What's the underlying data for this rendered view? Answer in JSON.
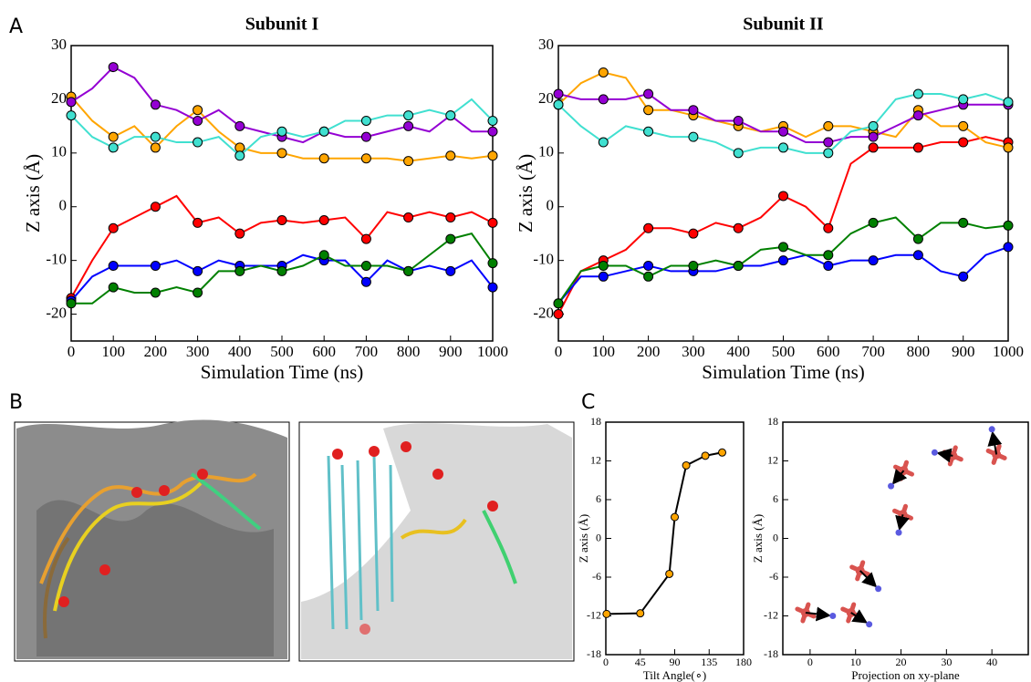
{
  "panels": [
    "A",
    "B",
    "C"
  ],
  "chart_data": [
    {
      "type": "line",
      "title": "Subunit I",
      "xlabel": "Simulation Time (ns)",
      "ylabel": "Z axis (Å)",
      "markers": true,
      "x": [
        0,
        50,
        100,
        150,
        200,
        250,
        300,
        350,
        400,
        450,
        500,
        550,
        600,
        650,
        700,
        750,
        800,
        850,
        900,
        950,
        1000
      ],
      "xlim": [
        0,
        1000
      ],
      "xticks": [
        0,
        100,
        200,
        300,
        400,
        500,
        600,
        700,
        800,
        900,
        1000
      ],
      "ylim": [
        -25,
        30
      ],
      "yticks": [
        -20,
        -10,
        0,
        10,
        20,
        30
      ],
      "series": [
        {
          "color": "#ff0000",
          "values": [
            -17,
            -10,
            -4,
            -2,
            0,
            2,
            -3,
            -2,
            -5,
            -3,
            -2.5,
            -3,
            -2.5,
            -2,
            -6,
            -1,
            -2,
            -1,
            -2,
            -1,
            -3
          ]
        },
        {
          "color": "#0000ff",
          "values": [
            -17.5,
            -13,
            -11,
            -11,
            -11,
            -10,
            -12,
            -10,
            -11,
            -11,
            -11,
            -9,
            -10,
            -10,
            -14,
            -10,
            -12,
            -11,
            -12,
            -10,
            -15
          ]
        },
        {
          "color": "#008000",
          "values": [
            -18,
            -18,
            -15,
            -16,
            -16,
            -15,
            -16,
            -12,
            -12,
            -11,
            -12,
            -11,
            -9,
            -11,
            -11,
            -11,
            -12,
            -9,
            -6,
            -5,
            -10.5
          ]
        },
        {
          "color": "#ffa500",
          "values": [
            20.5,
            16,
            13,
            15,
            11,
            15,
            18,
            14,
            11,
            10,
            10,
            9,
            9,
            9,
            9,
            9,
            8.5,
            9,
            9.5,
            9,
            9.5
          ]
        },
        {
          "color": "#9400d3",
          "values": [
            19.5,
            22,
            26,
            24,
            19,
            18,
            16,
            18,
            15,
            14,
            13,
            12,
            14,
            13,
            13,
            14,
            15,
            14,
            17,
            14,
            14
          ]
        },
        {
          "color": "#40e0d0",
          "values": [
            17,
            13,
            11,
            13,
            13,
            12,
            12,
            13,
            9.5,
            13,
            14,
            13,
            14,
            16,
            16,
            17,
            17,
            18,
            17,
            20,
            16
          ]
        }
      ]
    },
    {
      "type": "line",
      "title": "Subunit II",
      "xlabel": "Simulation Time (ns)",
      "ylabel": "Z axis (Å)",
      "markers": true,
      "x": [
        0,
        50,
        100,
        150,
        200,
        250,
        300,
        350,
        400,
        450,
        500,
        550,
        600,
        650,
        700,
        750,
        800,
        850,
        900,
        950,
        1000
      ],
      "xlim": [
        0,
        1000
      ],
      "xticks": [
        0,
        100,
        200,
        300,
        400,
        500,
        600,
        700,
        800,
        900,
        1000
      ],
      "ylim": [
        -25,
        30
      ],
      "yticks": [
        -20,
        -10,
        0,
        10,
        20,
        30
      ],
      "series": [
        {
          "color": "#ff0000",
          "values": [
            -20,
            -12,
            -10,
            -8,
            -4,
            -4,
            -5,
            -3,
            -4,
            -2,
            2,
            0,
            -4,
            8,
            11,
            11,
            11,
            12,
            12,
            13,
            12
          ]
        },
        {
          "color": "#0000ff",
          "values": [
            -18,
            -13,
            -13,
            -12,
            -11,
            -12,
            -12,
            -12,
            -11,
            -11,
            -10,
            -9,
            -11,
            -10,
            -10,
            -9,
            -9,
            -12,
            -13,
            -9,
            -7.5
          ]
        },
        {
          "color": "#008000",
          "values": [
            -18,
            -12,
            -11,
            -11,
            -13,
            -11,
            -11,
            -10,
            -11,
            -8,
            -7.5,
            -9,
            -9,
            -5,
            -3,
            -2,
            -6,
            -3,
            -3,
            -4,
            -3.5
          ]
        },
        {
          "color": "#ffa500",
          "values": [
            19,
            23,
            25,
            24,
            18,
            18,
            17,
            16,
            15,
            14,
            15,
            13,
            15,
            15,
            14,
            13,
            18,
            15,
            15,
            12,
            11
          ]
        },
        {
          "color": "#9400d3",
          "values": [
            21,
            20,
            20,
            20,
            21,
            18,
            18,
            16,
            16,
            14,
            14,
            12,
            12,
            13,
            13,
            15,
            17,
            18,
            19,
            19,
            19
          ]
        },
        {
          "color": "#40e0d0",
          "values": [
            19,
            15,
            12,
            15,
            14,
            13,
            13,
            12,
            10,
            11,
            11,
            10,
            10,
            14,
            15,
            20,
            21,
            21,
            20,
            21,
            19.5
          ]
        }
      ]
    },
    {
      "type": "line",
      "xlabel": "Tilt Angle(∘)",
      "ylabel": "Z axis (Å)",
      "markers": true,
      "x": [
        1,
        45,
        83,
        90,
        105,
        130,
        152
      ],
      "xlim": [
        0,
        180
      ],
      "xticks": [
        0,
        45,
        90,
        135,
        180
      ],
      "ylim": [
        -18,
        18
      ],
      "yticks": [
        -18,
        -12,
        -6,
        0,
        6,
        12,
        18
      ],
      "series": [
        {
          "color": "#ffa500",
          "values": [
            -11.7,
            -11.6,
            -5.5,
            3.3,
            11.3,
            12.8,
            13.3
          ]
        }
      ]
    },
    {
      "type": "scatter",
      "xlabel": "Projection on xy-plane",
      "ylabel": "Z axis (Å)",
      "arrows": true,
      "xlim": [
        -6,
        48
      ],
      "xticks": [
        0,
        10,
        20,
        30,
        40
      ],
      "ylim": [
        -18,
        18
      ],
      "yticks": [
        -18,
        -12,
        -6,
        0,
        6,
        12,
        18
      ],
      "series": [
        {
          "color": "#d9534f",
          "x": [
            -1,
            9,
            11,
            20.4,
            20.6,
            31.4,
            41
          ],
          "values": [
            -11.5,
            -11.5,
            -5,
            3.7,
            10.5,
            12.8,
            13
          ]
        },
        {
          "color": "#5a5ae0",
          "x": [
            5,
            13,
            15,
            19.5,
            17.8,
            27.4,
            40
          ],
          "values": [
            -12,
            -13.3,
            -7.8,
            0.9,
            8.1,
            13.3,
            16.9
          ]
        }
      ]
    }
  ]
}
